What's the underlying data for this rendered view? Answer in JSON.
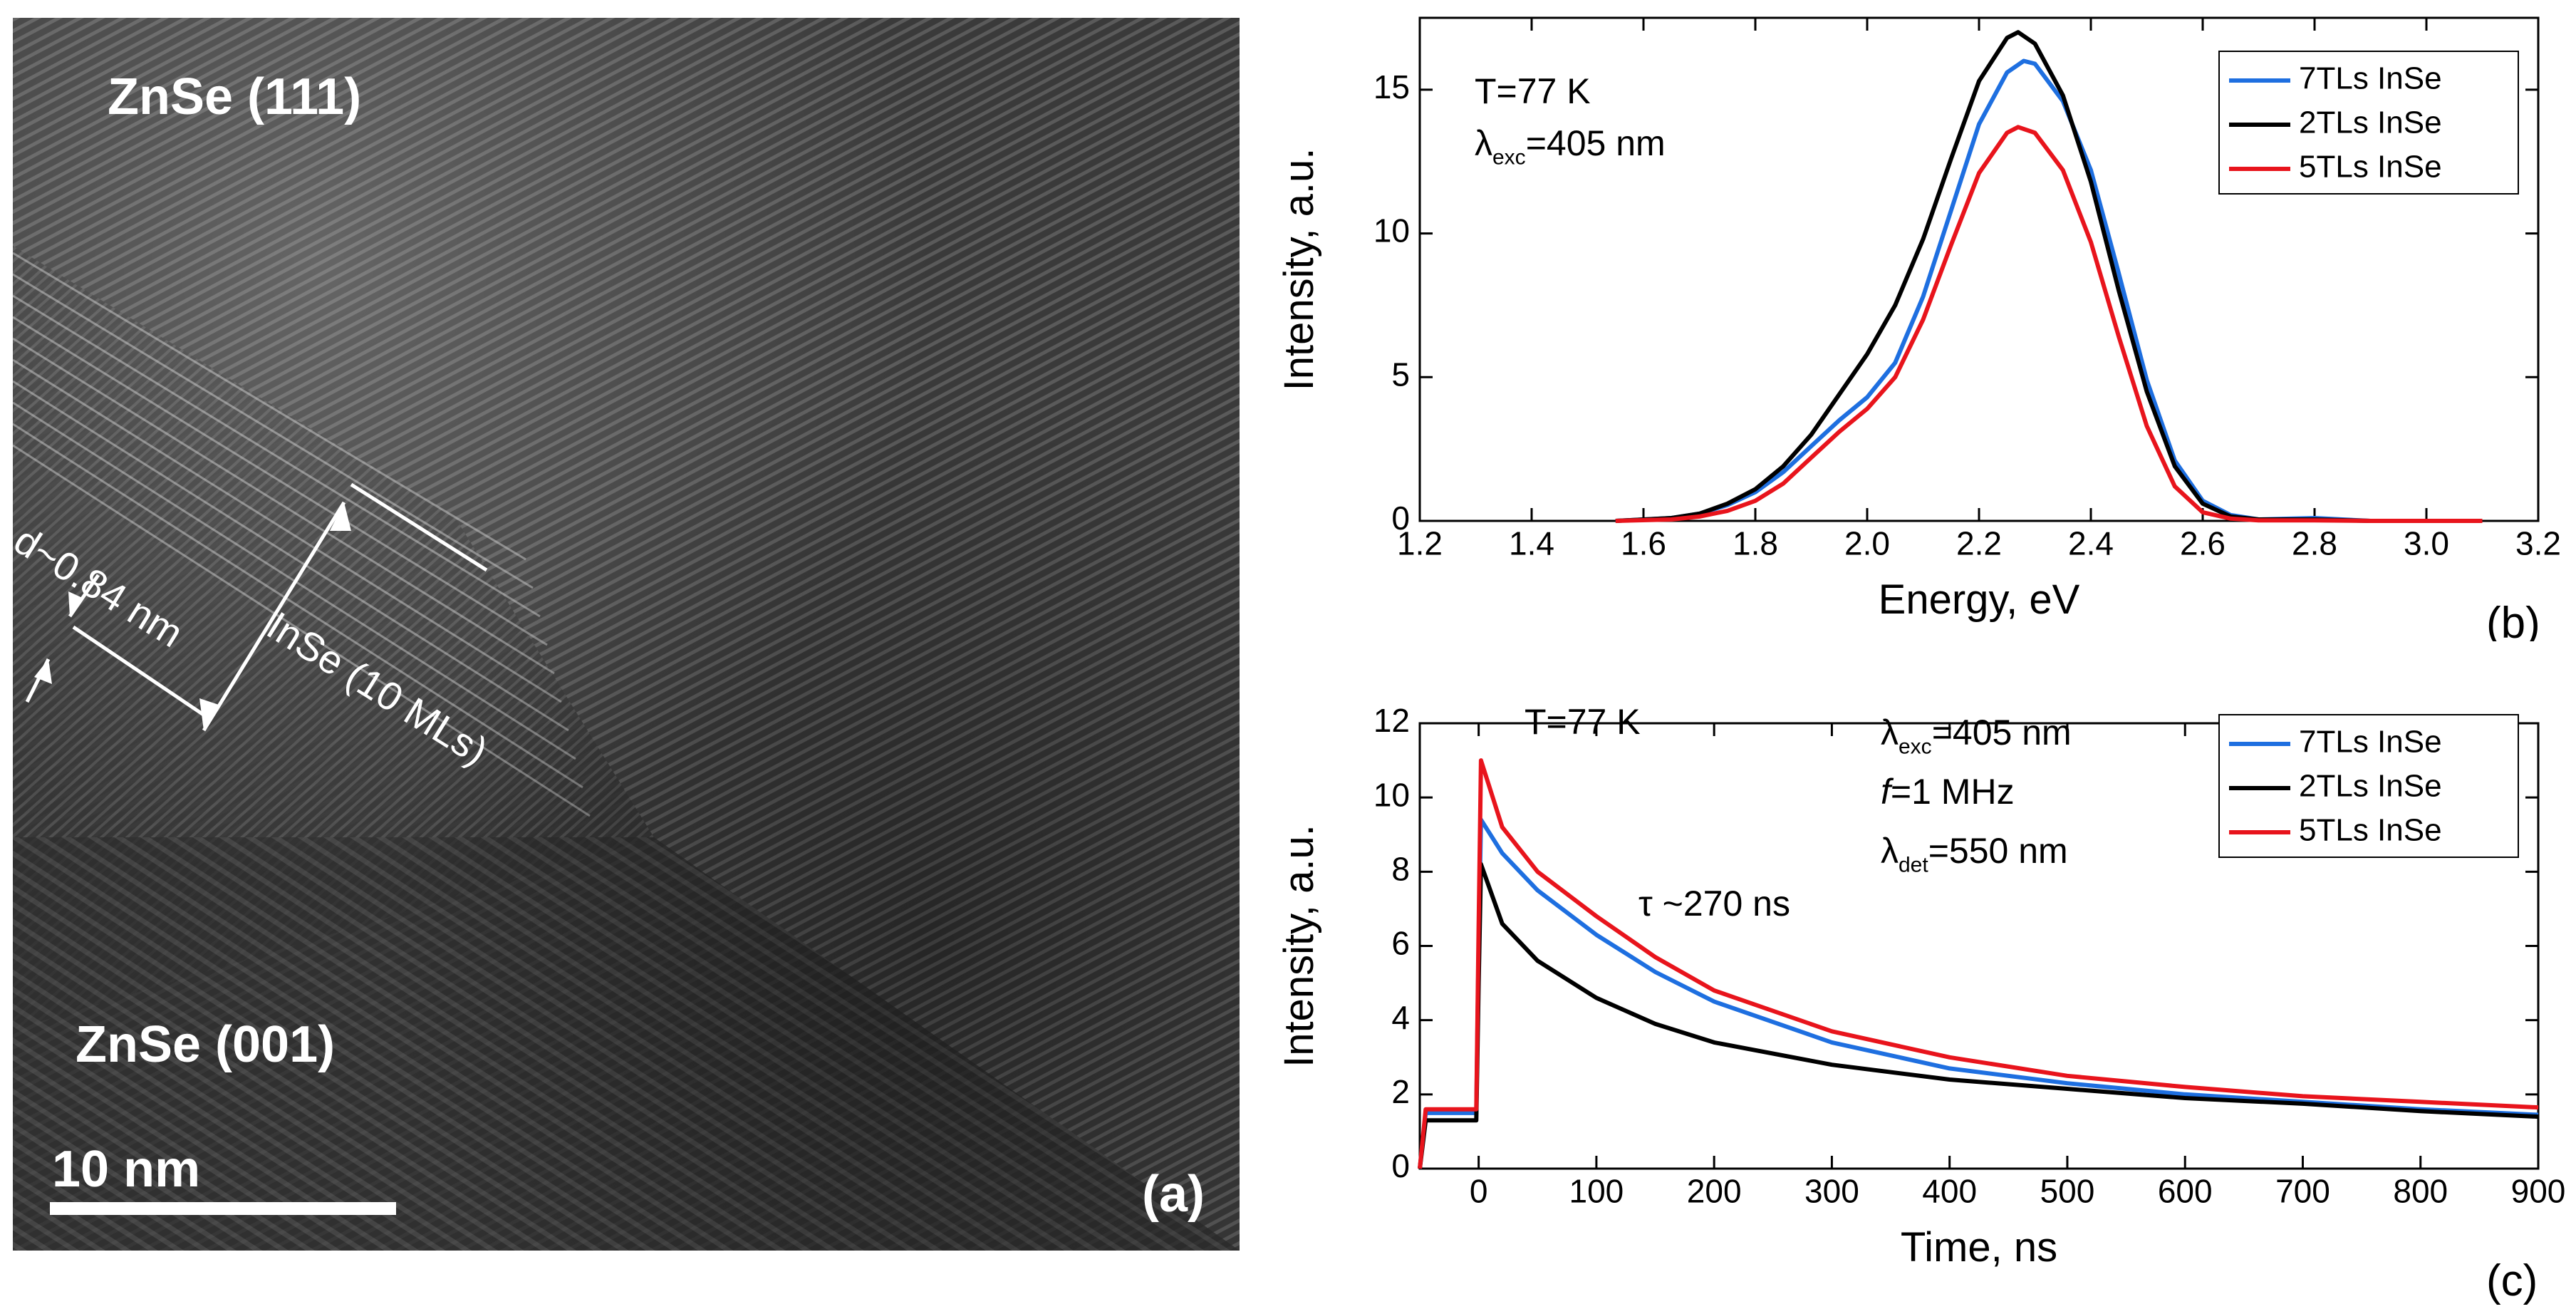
{
  "panel_a": {
    "labels": {
      "top_region": "ZnSe (111)",
      "bottom_region": "ZnSe (001)",
      "spacing": "d~0.84 nm",
      "layer": "InSe (10 MLs)",
      "scale": "10 nm",
      "panel": "(a)"
    }
  },
  "chart_data": [
    {
      "id": "b",
      "type": "line",
      "panel_label": "(b)",
      "title": "",
      "xlabel": "Energy, eV",
      "ylabel": "Intensity, a.u.",
      "xlim": [
        1.2,
        3.2
      ],
      "ylim": [
        0,
        17.5
      ],
      "xticks": [
        1.2,
        1.4,
        1.6,
        1.8,
        2.0,
        2.2,
        2.4,
        2.6,
        2.8,
        3.0,
        3.2
      ],
      "xtick_labels": [
        "1.2",
        "1.4",
        "1.6",
        "1.8",
        "2.0",
        "2.2",
        "2.4",
        "2.6",
        "2.8",
        "3.0",
        "3.2"
      ],
      "yticks": [
        0,
        5,
        10,
        15
      ],
      "ytick_labels": [
        "0",
        "5",
        "10",
        "15"
      ],
      "annotations": {
        "temp": "T=77 K",
        "lambda_sym": "λ",
        "lambda_sub": "exc",
        "lambda_val": "=405 nm"
      },
      "legend": "top-right",
      "series": [
        {
          "name": "7TLs InSe",
          "color": "#1e6fe0",
          "x": [
            1.55,
            1.65,
            1.7,
            1.75,
            1.8,
            1.85,
            1.9,
            1.95,
            2.0,
            2.05,
            2.1,
            2.15,
            2.2,
            2.25,
            2.28,
            2.3,
            2.35,
            2.4,
            2.45,
            2.5,
            2.55,
            2.6,
            2.65,
            2.7,
            2.8,
            2.9,
            3.1
          ],
          "y": [
            0,
            0.1,
            0.25,
            0.55,
            1.0,
            1.7,
            2.6,
            3.5,
            4.3,
            5.5,
            7.8,
            10.8,
            13.8,
            15.6,
            16.0,
            15.9,
            14.6,
            12.2,
            8.6,
            4.9,
            2.1,
            0.7,
            0.2,
            0.05,
            0.1,
            0,
            0
          ]
        },
        {
          "name": "2TLs InSe",
          "color": "#000000",
          "x": [
            1.55,
            1.65,
            1.7,
            1.75,
            1.8,
            1.85,
            1.9,
            1.95,
            2.0,
            2.05,
            2.1,
            2.15,
            2.2,
            2.25,
            2.27,
            2.3,
            2.35,
            2.4,
            2.45,
            2.5,
            2.55,
            2.6,
            2.65,
            2.7,
            2.8,
            2.9,
            3.1
          ],
          "y": [
            0,
            0.1,
            0.25,
            0.6,
            1.1,
            1.9,
            3.0,
            4.4,
            5.8,
            7.5,
            9.8,
            12.6,
            15.3,
            16.8,
            17.0,
            16.6,
            14.8,
            11.8,
            8.0,
            4.5,
            1.9,
            0.6,
            0.15,
            0.05,
            0.05,
            0,
            0
          ]
        },
        {
          "name": "5TLs InSe",
          "color": "#e8141c",
          "x": [
            1.55,
            1.65,
            1.7,
            1.75,
            1.8,
            1.85,
            1.9,
            1.95,
            2.0,
            2.05,
            2.1,
            2.15,
            2.2,
            2.25,
            2.27,
            2.3,
            2.35,
            2.4,
            2.45,
            2.5,
            2.55,
            2.6,
            2.65,
            2.7,
            2.8,
            2.9,
            3.1
          ],
          "y": [
            0,
            0.05,
            0.15,
            0.35,
            0.7,
            1.3,
            2.2,
            3.1,
            3.9,
            5.0,
            7.0,
            9.6,
            12.1,
            13.5,
            13.7,
            13.5,
            12.2,
            9.7,
            6.4,
            3.3,
            1.2,
            0.3,
            0.08,
            0.02,
            0.02,
            0,
            0
          ]
        }
      ]
    },
    {
      "id": "c",
      "type": "line",
      "panel_label": "(c)",
      "title": "",
      "xlabel": "Time, ns",
      "ylabel": "Intensity, a.u.",
      "xlim": [
        -50,
        900
      ],
      "ylim": [
        0,
        12
      ],
      "xticks": [
        0,
        100,
        200,
        300,
        400,
        500,
        600,
        700,
        800,
        900
      ],
      "xtick_labels": [
        "0",
        "100",
        "200",
        "300",
        "400",
        "500",
        "600",
        "700",
        "800",
        "900"
      ],
      "yticks": [
        0,
        2,
        4,
        6,
        8,
        10,
        12
      ],
      "ytick_labels": [
        "0",
        "2",
        "4",
        "6",
        "8",
        "10",
        "12"
      ],
      "annotations": {
        "temp": "T=77 K",
        "lambda_sym": "λ",
        "exc_sub": "exc",
        "exc_val": "=405 nm",
        "freq_sym": "f",
        "freq_val": "=1 MHz",
        "det_sub": "det",
        "det_val": "=550 nm",
        "tau": "τ ~270 ns"
      },
      "legend": "top-right",
      "series": [
        {
          "name": "7TLs InSe",
          "color": "#1e6fe0",
          "x": [
            -50,
            -45,
            -2,
            0,
            2,
            20,
            50,
            100,
            150,
            200,
            300,
            400,
            500,
            600,
            700,
            800,
            900
          ],
          "y": [
            0,
            1.5,
            1.5,
            6.0,
            9.4,
            8.5,
            7.5,
            6.3,
            5.3,
            4.5,
            3.4,
            2.7,
            2.3,
            2.0,
            1.8,
            1.6,
            1.45
          ]
        },
        {
          "name": "2TLs InSe",
          "color": "#000000",
          "x": [
            -50,
            -45,
            -2,
            0,
            2,
            20,
            50,
            100,
            150,
            200,
            300,
            400,
            500,
            600,
            700,
            800,
            900
          ],
          "y": [
            0,
            1.3,
            1.3,
            5.0,
            8.2,
            6.6,
            5.6,
            4.6,
            3.9,
            3.4,
            2.8,
            2.4,
            2.15,
            1.9,
            1.75,
            1.55,
            1.4
          ]
        },
        {
          "name": "5TLs InSe",
          "color": "#e8141c",
          "x": [
            -50,
            -45,
            -2,
            0,
            2,
            20,
            50,
            100,
            150,
            200,
            300,
            400,
            500,
            600,
            700,
            800,
            900
          ],
          "y": [
            0,
            1.6,
            1.6,
            6.5,
            11.0,
            9.2,
            8.0,
            6.8,
            5.7,
            4.8,
            3.7,
            3.0,
            2.5,
            2.2,
            1.95,
            1.8,
            1.65
          ]
        }
      ]
    }
  ]
}
